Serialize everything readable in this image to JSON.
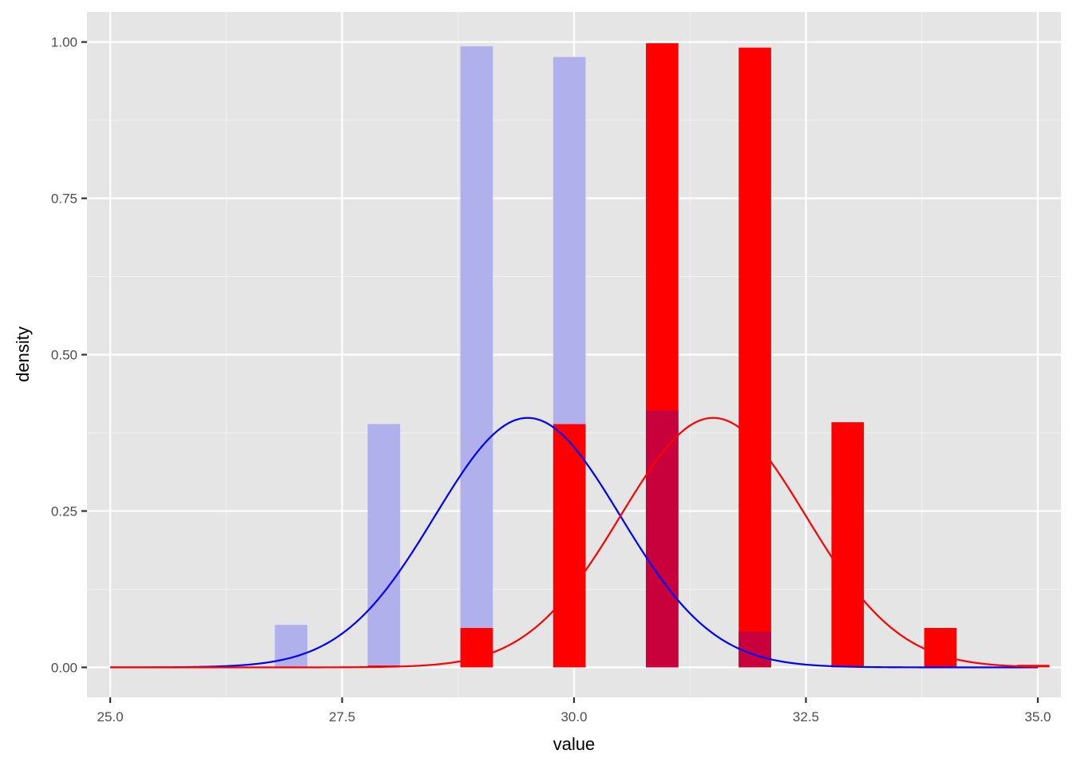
{
  "chart_data": {
    "type": "bar",
    "title": "",
    "xlabel": "value",
    "ylabel": "density",
    "xlim": [
      24.75,
      35.25
    ],
    "ylim": [
      -0.048,
      1.048
    ],
    "x_ticks": [
      25.0,
      27.5,
      30.0,
      32.5,
      35.0
    ],
    "x_tick_labels": [
      "25.0",
      "27.5",
      "30.0",
      "32.5",
      "35.0"
    ],
    "y_ticks": [
      0.0,
      0.25,
      0.5,
      0.75,
      1.0
    ],
    "y_tick_labels": [
      "0.00",
      "0.25",
      "0.50",
      "0.75",
      "1.00"
    ],
    "bar_width": 0.35,
    "grid": true,
    "legend": "none",
    "colors": {
      "panel": "#e5e5e5",
      "grid_major": "#ffffff",
      "grid_minor": "#f2f2f2",
      "series_a_fill": "#b0b0ec",
      "series_b_fill": "#ff0000",
      "overlap_fill": "#c8003c",
      "series_a_curve": "#0000ff",
      "series_b_curve": "#ff0000"
    },
    "series": [
      {
        "kind": "histogram",
        "bins": [
          {
            "x": 26.95,
            "y": 0.068
          },
          {
            "x": 27.95,
            "y": 0.389
          },
          {
            "x": 28.95,
            "y": 0.993
          },
          {
            "x": 29.95,
            "y": 0.976
          }
        ]
      },
      {
        "kind": "histogram",
        "bins": [
          {
            "x": 27.95,
            "y": 0.003
          },
          {
            "x": 28.95,
            "y": 0.063
          },
          {
            "x": 29.95,
            "y": 0.389
          },
          {
            "x": 30.95,
            "y": 0.998
          },
          {
            "x": 31.95,
            "y": 0.991
          },
          {
            "x": 32.95,
            "y": 0.392
          },
          {
            "x": 33.95,
            "y": 0.063
          },
          {
            "x": 34.95,
            "y": 0.004
          }
        ]
      },
      {
        "kind": "overlap",
        "bins": [
          {
            "x": 30.95,
            "y": 0.411
          },
          {
            "x": 31.95,
            "y": 0.057
          }
        ]
      },
      {
        "kind": "normal_density_curve",
        "mean": 29.5,
        "sd": 1.0,
        "x_range": [
          25.0,
          35.0
        ]
      },
      {
        "kind": "normal_density_curve",
        "mean": 31.5,
        "sd": 1.0,
        "x_range": [
          25.0,
          35.0
        ]
      }
    ]
  }
}
